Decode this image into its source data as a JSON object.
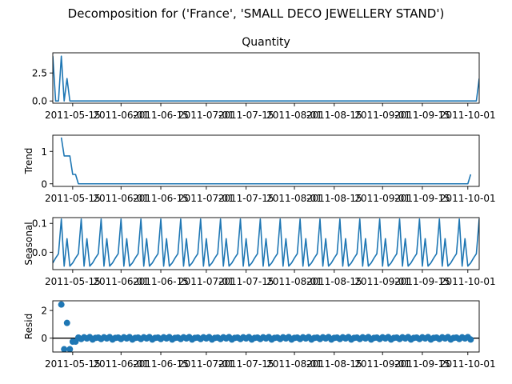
{
  "chart_data": {
    "type": "line",
    "title": "Decomposition for ('France', 'SMALL DECO JEWELLERY STAND')",
    "x_start": "2011-05-08",
    "x_end": "2011-10-05",
    "x_ticks": [
      "2011-05-15",
      "2011-06-01",
      "2011-06-15",
      "2011-07-01",
      "2011-07-15",
      "2011-08-01",
      "2011-08-15",
      "2011-09-01",
      "2011-09-15",
      "2011-10-01"
    ],
    "panels": [
      {
        "id": "quantity",
        "title": "Quantity",
        "ylabel": "",
        "plot": "line",
        "ylim": [
          -0.2,
          4.3
        ],
        "yticks": [
          "0.0",
          "2.5"
        ],
        "ytick_values": [
          0,
          2.5
        ],
        "points": [
          [
            "2011-05-08",
            4
          ],
          [
            "2011-05-09",
            0
          ],
          [
            "2011-05-10",
            0
          ],
          [
            "2011-05-11",
            4
          ],
          [
            "2011-05-12",
            0
          ],
          [
            "2011-05-13",
            2
          ],
          [
            "2011-05-14",
            0
          ],
          [
            "2011-10-04",
            0
          ],
          [
            "2011-10-05",
            2
          ]
        ]
      },
      {
        "id": "trend",
        "title": "",
        "ylabel": "Trend",
        "plot": "line",
        "ylim": [
          -0.08,
          1.5
        ],
        "yticks": [
          "0",
          "1"
        ],
        "ytick_values": [
          0,
          1
        ],
        "points": [
          [
            "2011-05-11",
            1.43
          ],
          [
            "2011-05-12",
            0.86
          ],
          [
            "2011-05-13",
            0.86
          ],
          [
            "2011-05-14",
            0.86
          ],
          [
            "2011-05-15",
            0.29
          ],
          [
            "2011-05-16",
            0.29
          ],
          [
            "2011-05-17",
            0
          ],
          [
            "2011-10-01",
            0
          ],
          [
            "2011-10-02",
            0.29
          ]
        ]
      },
      {
        "id": "seasonal",
        "title": "",
        "ylabel": "Seasonal",
        "plot": "line",
        "ylim": [
          -0.06,
          0.12
        ],
        "yticks": [
          "0.0",
          "0.1"
        ],
        "ytick_values": [
          0,
          0.1
        ],
        "weekly_pattern": [
          -0.037,
          -0.02,
          -0.005,
          0.115,
          -0.048,
          0.047,
          -0.048
        ],
        "pattern_start": "2011-05-08"
      },
      {
        "id": "resid",
        "title": "",
        "ylabel": "Resid",
        "plot": "scatter",
        "ylim": [
          -1.0,
          2.7
        ],
        "yticks": [
          "0",
          "2"
        ],
        "ytick_values": [
          0,
          2
        ],
        "baseline": 0,
        "notable_points": [
          [
            "2011-05-11",
            2.43
          ],
          [
            "2011-05-12",
            -0.8
          ],
          [
            "2011-05-13",
            1.1
          ],
          [
            "2011-05-14",
            -0.8
          ],
          [
            "2011-05-15",
            -0.25
          ],
          [
            "2011-05-16",
            -0.25
          ]
        ],
        "tail_start": "2011-05-17",
        "tail_end": "2011-10-02",
        "tail_pattern": [
          0.04,
          -0.06,
          0.06,
          -0.02,
          0.08,
          -0.1,
          0.02
        ]
      }
    ]
  },
  "colors": {
    "line": "#1f77b4",
    "axis": "#000000",
    "baseline": "#000000"
  }
}
